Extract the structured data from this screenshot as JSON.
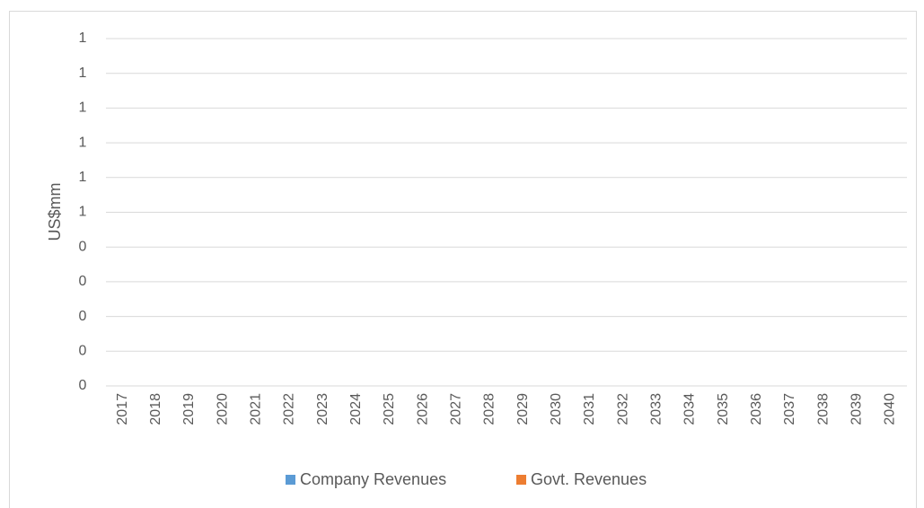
{
  "chart_data": {
    "type": "bar",
    "y_label": "US$mm",
    "categories": [
      "2017",
      "2018",
      "2019",
      "2020",
      "2021",
      "2022",
      "2023",
      "2024",
      "2025",
      "2026",
      "2027",
      "2028",
      "2029",
      "2030",
      "2031",
      "2032",
      "2033",
      "2034",
      "2035",
      "2036",
      "2037",
      "2038",
      "2039",
      "2040"
    ],
    "series": [
      {
        "name": "Company Revenues",
        "color": "#5b9bd5",
        "values": [
          null,
          null,
          null,
          null,
          null,
          null,
          null,
          null,
          null,
          null,
          null,
          null,
          null,
          null,
          null,
          null,
          null,
          null,
          null,
          null,
          null,
          null,
          null,
          null
        ]
      },
      {
        "name": "Govt. Revenues",
        "color": "#ed7d31",
        "values": [
          null,
          null,
          null,
          null,
          null,
          null,
          null,
          null,
          null,
          null,
          null,
          null,
          null,
          null,
          null,
          null,
          null,
          null,
          null,
          null,
          null,
          null,
          null,
          null
        ]
      }
    ],
    "ylim": [
      0,
      1
    ],
    "yticks": [
      0,
      {
        "value": 0.1,
        "label": "0"
      },
      {
        "value": 0.2,
        "label": "0"
      },
      {
        "value": 0.3,
        "label": "0"
      },
      {
        "value": 0.4,
        "label": "0"
      },
      {
        "value": 0.5,
        "label": "1"
      },
      {
        "value": 0.6,
        "label": "1"
      },
      {
        "value": 0.7,
        "label": "1"
      },
      {
        "value": 0.8,
        "label": "1"
      },
      {
        "value": 0.9,
        "label": "1"
      },
      1
    ],
    "grid": true,
    "legend": "bottom"
  }
}
